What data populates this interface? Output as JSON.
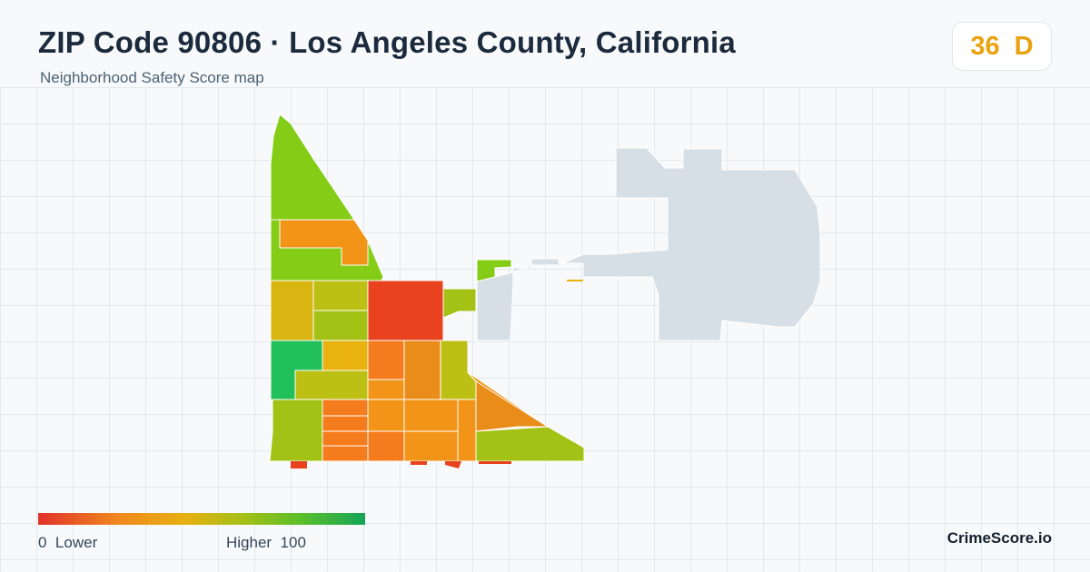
{
  "header": {
    "title": "ZIP Code 90806 · Los Angeles County, California",
    "subtitle": "Neighborhood Safety Score map"
  },
  "score": {
    "value": "36",
    "grade": "D",
    "color": "#eaa20e"
  },
  "legend": {
    "min_value": "0",
    "min_label": "Lower",
    "max_label": "Higher",
    "max_value": "100",
    "low_color": "#e1322a",
    "high_color": "#16a457"
  },
  "brand": "CrimeScore.io",
  "map": {
    "neighbor_area_color": "#d7dfe6",
    "tile_colors": [
      "#84cc16",
      "#f29418",
      "#a3c215",
      "#d8b510",
      "#bcc014",
      "#e8421f",
      "#22c05a",
      "#e9b20f",
      "#f57c1c",
      "#ea8c1a"
    ]
  }
}
